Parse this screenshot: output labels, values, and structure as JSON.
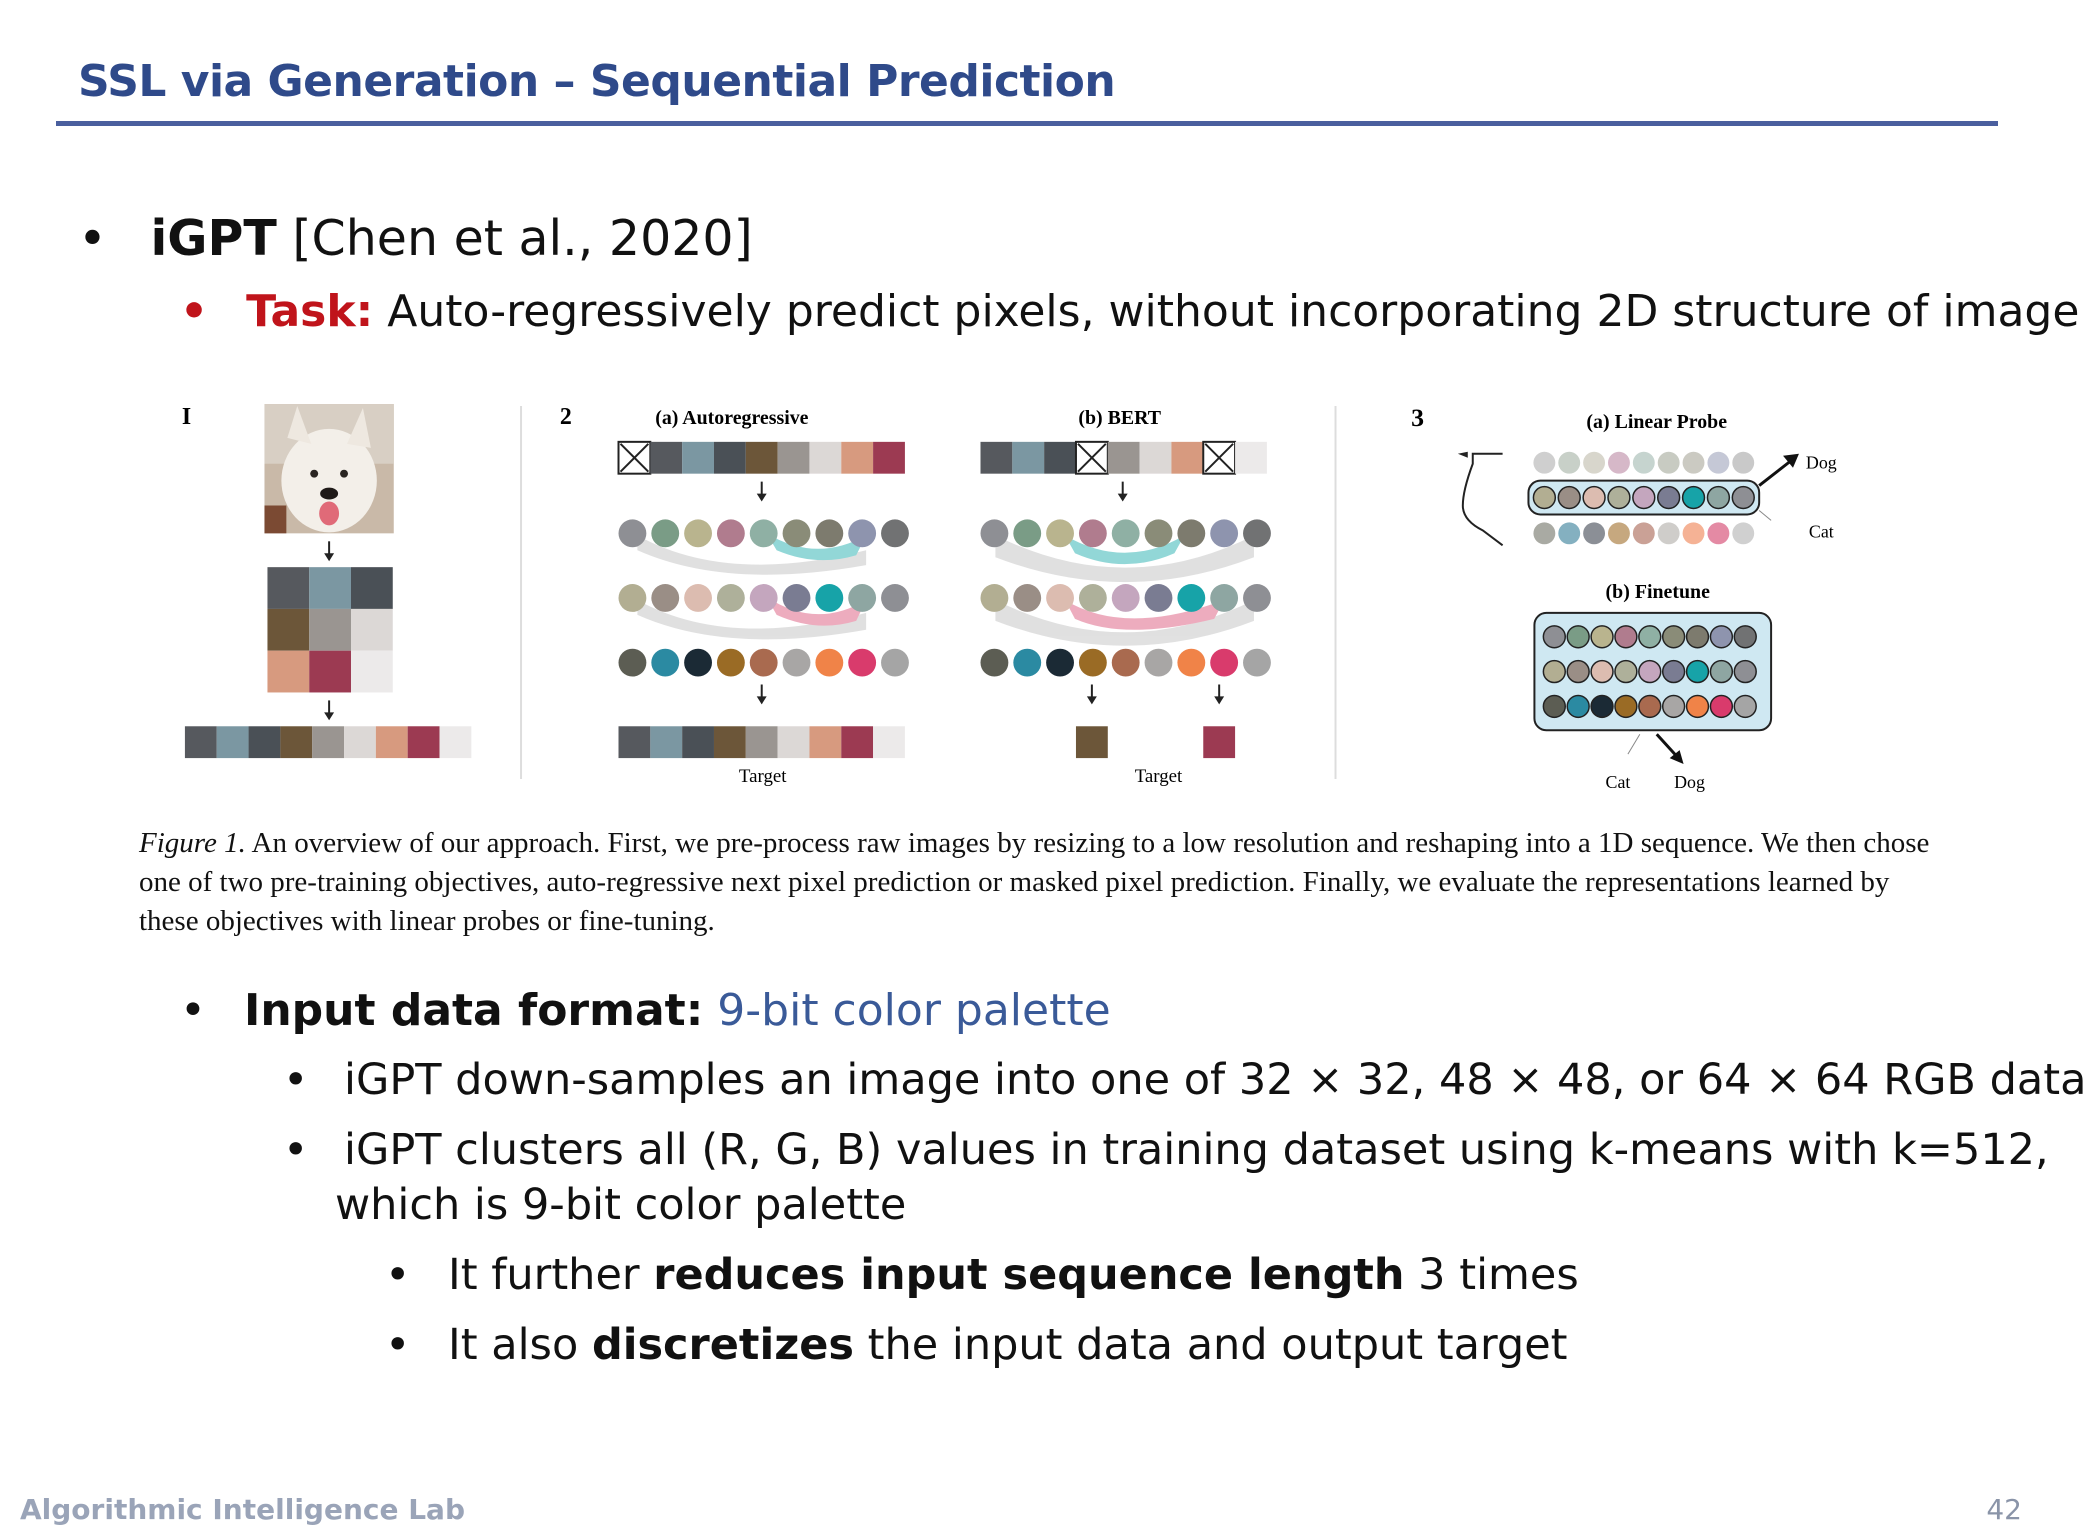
{
  "title": "SSL via Generation – Sequential Prediction",
  "bullets": {
    "igpt": {
      "name": "iGPT",
      "cite": "[Chen et al., 2020]"
    },
    "task": {
      "label": "Task:",
      "text": "Auto-regressively predict pixels, without incorporating 2D structure of image"
    },
    "input": {
      "label": "Input data format:",
      "value": "9-bit color palette"
    },
    "sub1": "iGPT down-samples an image into one of 32 × 32, 48 × 48, or 64 × 64 RGB data",
    "sub2_line1": "iGPT clusters all (R, G, B) values in training dataset using k-means with k=512,",
    "sub2_line2": "which is 9-bit color palette",
    "sub3": {
      "pre": "It further ",
      "bold": "reduces input sequence length",
      "post": " 3 times"
    },
    "sub4": {
      "pre": "It also ",
      "bold": "discretizes",
      "post": " the input data and output target"
    }
  },
  "figure": {
    "panel1_label": "I",
    "panel2_label": "2",
    "panel3_label": "3",
    "autoregressive": "(a) Autoregressive",
    "bert": "(b) BERT",
    "linear_probe": "(a) Linear Probe",
    "finetune": "(b) Finetune",
    "target": "Target",
    "dog": "Dog",
    "cat": "Cat"
  },
  "caption": {
    "label": "Figure 1.",
    "text": " An overview of our approach. First, we pre-process raw images by resizing to a low resolution and reshaping into a 1D sequence. We then chose one of two pre-training objectives, auto-regressive next pixel prediction or masked pixel prediction. Finally, we evaluate the representations learned by these objectives with linear probes or fine-tuning."
  },
  "footer": {
    "lab": "Algorithmic Intelligence Lab",
    "page": "42"
  },
  "colors": {
    "title": "#2f4a8a",
    "task_red": "#c0141b",
    "palette_blue": "#3a5a98",
    "seq": [
      "#56595e",
      "#7b97a2",
      "#4a5056",
      "#6c5639",
      "#9a9591",
      "#dcd8d6",
      "#d79a7f",
      "#9c3a52",
      "#eceaea"
    ]
  }
}
